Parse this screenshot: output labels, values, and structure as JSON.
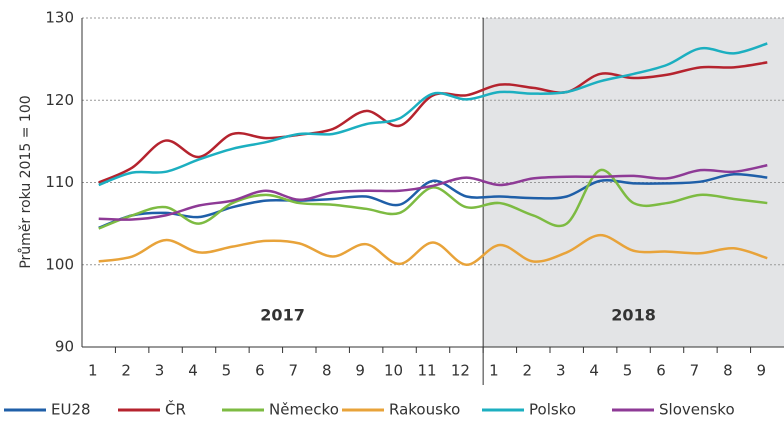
{
  "chart_data": {
    "type": "line",
    "ylabel": "Průměr roku 2015 = 100",
    "annotations": [
      "2017",
      "2018"
    ],
    "categories": [
      "1",
      "2",
      "3",
      "4",
      "5",
      "6",
      "7",
      "8",
      "9",
      "10",
      "11",
      "12",
      "1",
      "2",
      "3",
      "4",
      "5",
      "6",
      "7",
      "8",
      "9"
    ],
    "ylim": [
      90,
      130
    ],
    "yticks": [
      90,
      100,
      110,
      120,
      130
    ],
    "grid": true,
    "legend": "bottom",
    "series": [
      {
        "name": "EU28",
        "color": "#1f5fa8",
        "values": [
          104.5,
          106,
          106.3,
          105.8,
          107,
          107.8,
          107.8,
          108,
          108.3,
          107.3,
          110.2,
          108.3,
          108.3,
          108.1,
          108.3,
          110.2,
          109.9,
          109.9,
          110.1,
          111,
          110.6
        ]
      },
      {
        "name": "ČR",
        "color": "#b5232e",
        "values": [
          110,
          111.8,
          115.1,
          113.1,
          115.9,
          115.4,
          115.8,
          116.5,
          118.7,
          116.9,
          120.6,
          120.6,
          121.9,
          121.5,
          121,
          123.2,
          122.7,
          123.1,
          124,
          124,
          124.6
        ]
      },
      {
        "name": "Německo",
        "color": "#7dbb42",
        "values": [
          104.4,
          106,
          107,
          105,
          107.5,
          108.5,
          107.5,
          107.3,
          106.8,
          106.3,
          109.4,
          107,
          107.5,
          106,
          105,
          111.5,
          107.5,
          107.5,
          108.5,
          108,
          107.5
        ]
      },
      {
        "name": "Rakousko",
        "color": "#e8a33a",
        "values": [
          100.4,
          101,
          103,
          101.5,
          102.2,
          102.9,
          102.6,
          101,
          102.5,
          100.1,
          102.7,
          100,
          102.4,
          100.4,
          101.5,
          103.6,
          101.7,
          101.6,
          101.4,
          102,
          100.8
        ]
      },
      {
        "name": "Polsko",
        "color": "#1cafc0",
        "values": [
          109.7,
          111.2,
          111.3,
          112.8,
          114.1,
          114.9,
          115.9,
          115.9,
          117.1,
          117.8,
          120.8,
          120.1,
          121,
          120.8,
          121,
          122.3,
          123.2,
          124.3,
          126.3,
          125.7,
          126.9
        ]
      },
      {
        "name": "Slovensko",
        "color": "#8e3a96",
        "values": [
          105.6,
          105.5,
          106,
          107.2,
          107.8,
          109,
          107.9,
          108.8,
          109,
          109,
          109.6,
          110.6,
          109.7,
          110.5,
          110.7,
          110.7,
          110.8,
          110.5,
          111.5,
          111.3,
          112.1
        ]
      }
    ]
  }
}
